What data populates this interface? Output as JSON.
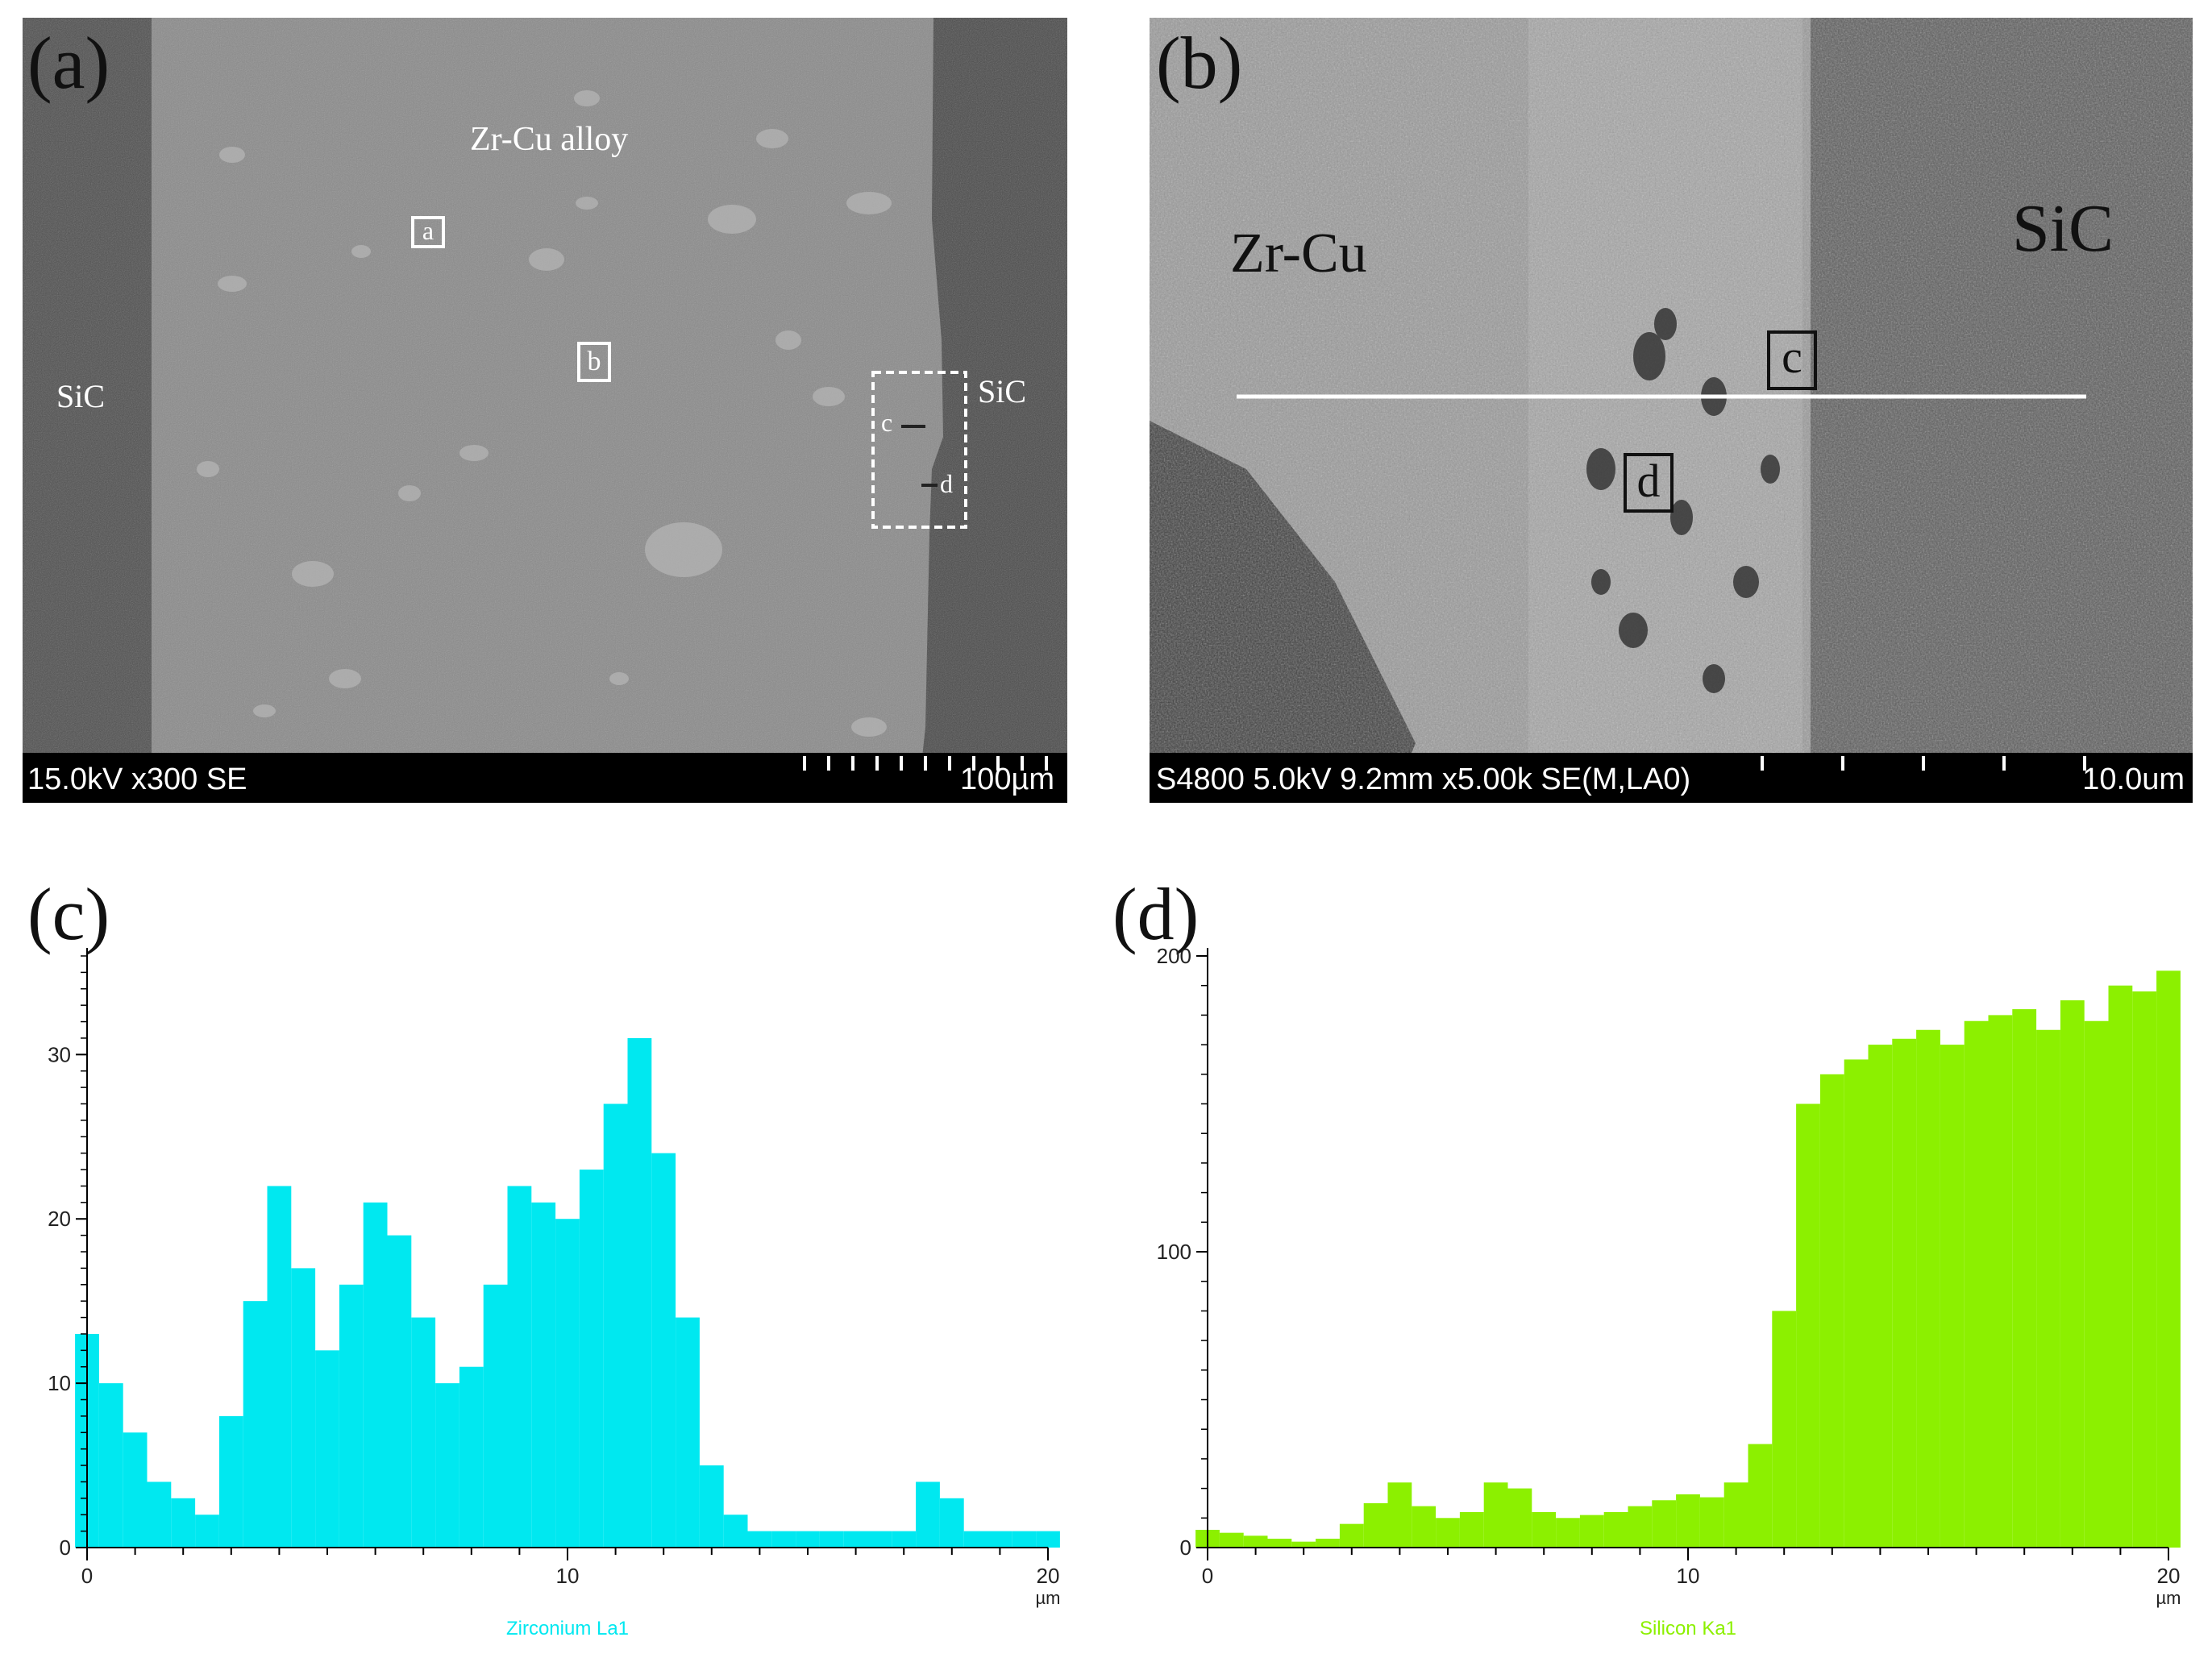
{
  "panels": {
    "a": {
      "letter": "(a)",
      "labels": {
        "alloy": "Zr-Cu alloy",
        "sic_left": "SiC",
        "sic_right": "SiC",
        "box_a": "a",
        "box_b": "b",
        "mark_c": "c",
        "mark_d": "d"
      },
      "info": {
        "left": "15.0kV x300 SE",
        "right": "100µm"
      }
    },
    "b": {
      "letter": "(b)",
      "labels": {
        "zrcu": "Zr-Cu",
        "sic": "SiC",
        "box_c": "c",
        "box_d": "d"
      },
      "info": {
        "left": "S4800 5.0kV 9.2mm x5.00k SE(M,LA0)",
        "right": "10.0um"
      }
    },
    "c": {
      "letter": "(c)"
    },
    "d": {
      "letter": "(d)"
    }
  },
  "chart_data": [
    {
      "type": "area",
      "panel": "c",
      "title": "",
      "xlabel": "Zirconium La1",
      "x_unit": "µm",
      "ylabel": "",
      "xlim": [
        0,
        20
      ],
      "ylim": [
        0,
        36
      ],
      "x_ticks": [
        0,
        10,
        20
      ],
      "y_ticks": [
        0,
        10,
        20,
        30
      ],
      "color": "#00e8f0",
      "series": [
        {
          "x": [
            0,
            0.5,
            1,
            1.5,
            2,
            2.5,
            3,
            3.5,
            4,
            4.5,
            5,
            5.5,
            6,
            6.5,
            7,
            7.5,
            8,
            8.5,
            9,
            9.5,
            10,
            10.5,
            11,
            11.5,
            12,
            12.5,
            13,
            13.5,
            14,
            14.5,
            15,
            15.5,
            16,
            16.5,
            17,
            17.5,
            18,
            18.5,
            19,
            19.5,
            20
          ],
          "values": [
            13,
            10,
            7,
            4,
            3,
            2,
            8,
            15,
            22,
            17,
            12,
            16,
            21,
            19,
            14,
            10,
            11,
            16,
            22,
            21,
            20,
            23,
            27,
            31,
            24,
            14,
            5,
            2,
            1,
            1,
            1,
            1,
            1,
            1,
            1,
            4,
            3,
            1,
            1,
            1,
            1
          ]
        }
      ]
    },
    {
      "type": "area",
      "panel": "d",
      "title": "",
      "xlabel": "Silicon Ka1",
      "x_unit": "µm",
      "ylabel": "",
      "xlim": [
        0,
        20
      ],
      "ylim": [
        0,
        200
      ],
      "x_ticks": [
        0,
        10,
        20
      ],
      "y_ticks": [
        0,
        100,
        200
      ],
      "color": "#8cf000",
      "series": [
        {
          "x": [
            0,
            0.5,
            1,
            1.5,
            2,
            2.5,
            3,
            3.5,
            4,
            4.5,
            5,
            5.5,
            6,
            6.5,
            7,
            7.5,
            8,
            8.5,
            9,
            9.5,
            10,
            10.5,
            11,
            11.5,
            12,
            12.5,
            13,
            13.5,
            14,
            14.5,
            15,
            15.5,
            16,
            16.5,
            17,
            17.5,
            18,
            18.5,
            19,
            19.5,
            20
          ],
          "values": [
            6,
            5,
            4,
            3,
            2,
            3,
            8,
            15,
            22,
            14,
            10,
            12,
            22,
            20,
            12,
            10,
            11,
            12,
            14,
            16,
            18,
            17,
            22,
            35,
            80,
            150,
            160,
            165,
            170,
            172,
            175,
            170,
            178,
            180,
            182,
            175,
            185,
            178,
            190,
            188,
            195
          ]
        }
      ]
    }
  ]
}
